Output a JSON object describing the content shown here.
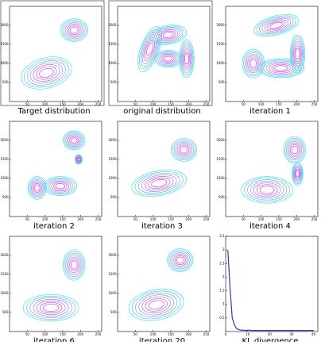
{
  "chart_data": [
    {
      "type": "contour",
      "caption": "Target distribution",
      "frame": true,
      "xlim": [
        0,
        260
      ],
      "ylim": [
        0,
        2500
      ],
      "xticks": [
        50,
        100,
        150,
        200,
        250
      ],
      "yticks": [
        500,
        1000,
        1500,
        2000
      ]
    },
    {
      "type": "contour",
      "caption": "original distribution",
      "frame": true,
      "xlim": [
        0,
        260
      ],
      "ylim": [
        0,
        2500
      ],
      "xticks": [
        50,
        100,
        150,
        200,
        250
      ],
      "yticks": [
        500,
        1000,
        1500,
        2000
      ]
    },
    {
      "type": "contour",
      "caption": "iteration 1",
      "frame": false,
      "xlim": [
        0,
        260
      ],
      "ylim": [
        0,
        2500
      ],
      "xticks": [
        50,
        100,
        150,
        200,
        250
      ],
      "yticks": [
        500,
        1000,
        1500,
        2000
      ]
    },
    {
      "type": "contour",
      "caption": "iteration 2",
      "frame": false,
      "xlim": [
        0,
        260
      ],
      "ylim": [
        0,
        2500
      ],
      "xticks": [
        50,
        100,
        150,
        200,
        250
      ],
      "yticks": [
        500,
        1000,
        1500,
        2000
      ]
    },
    {
      "type": "contour",
      "caption": "iteration 3",
      "frame": false,
      "xlim": [
        0,
        260
      ],
      "ylim": [
        0,
        2500
      ],
      "xticks": [
        50,
        100,
        150,
        200,
        250
      ],
      "yticks": [
        500,
        1000,
        1500,
        2000
      ]
    },
    {
      "type": "contour",
      "caption": "iteration 4",
      "frame": false,
      "xlim": [
        0,
        260
      ],
      "ylim": [
        0,
        2500
      ],
      "xticks": [
        50,
        100,
        150,
        200,
        250
      ],
      "yticks": [
        500,
        1000,
        1500,
        2000
      ]
    },
    {
      "type": "contour",
      "caption": "iteration 6",
      "frame": false,
      "xlim": [
        0,
        260
      ],
      "ylim": [
        0,
        2500
      ],
      "xticks": [
        50,
        100,
        150,
        200,
        250
      ],
      "yticks": [
        500,
        1000,
        1500,
        2000
      ]
    },
    {
      "type": "contour",
      "caption": "iteration 20",
      "frame": false,
      "xlim": [
        0,
        260
      ],
      "ylim": [
        0,
        2500
      ],
      "xticks": [
        50,
        100,
        150,
        200,
        250
      ],
      "yticks": [
        500,
        1000,
        1500,
        2000
      ]
    },
    {
      "type": "line",
      "caption": "KL divergence",
      "color": "#2a3ca8",
      "xlim": [
        0,
        42
      ],
      "ylim": [
        0,
        3.5
      ],
      "xticks": [
        0,
        10,
        20,
        30,
        40
      ],
      "yticks": [
        0.5,
        1,
        1.5,
        2,
        2.5,
        3,
        3.5
      ],
      "x": [
        1,
        2,
        3,
        4,
        5,
        6,
        7,
        8,
        9,
        10,
        11,
        12,
        13,
        14,
        15,
        16,
        17,
        18,
        19,
        20,
        21,
        22,
        23,
        24,
        25,
        26,
        27,
        28,
        29,
        30,
        31,
        32,
        33,
        34,
        35,
        36,
        37,
        38,
        39,
        40
      ],
      "values": [
        3.0,
        1.6,
        0.5,
        0.25,
        0.1,
        0.07,
        0.05,
        0.05,
        0.04,
        0.05,
        0.05,
        0.04,
        0.04,
        0.04,
        0.04,
        0.04,
        0.04,
        0.04,
        0.04,
        0.04,
        0.04,
        0.04,
        0.04,
        0.04,
        0.04,
        0.04,
        0.04,
        0.04,
        0.04,
        0.04,
        0.04,
        0.04,
        0.04,
        0.04,
        0.04,
        0.04,
        0.04,
        0.04,
        0.04,
        0.04
      ]
    }
  ]
}
